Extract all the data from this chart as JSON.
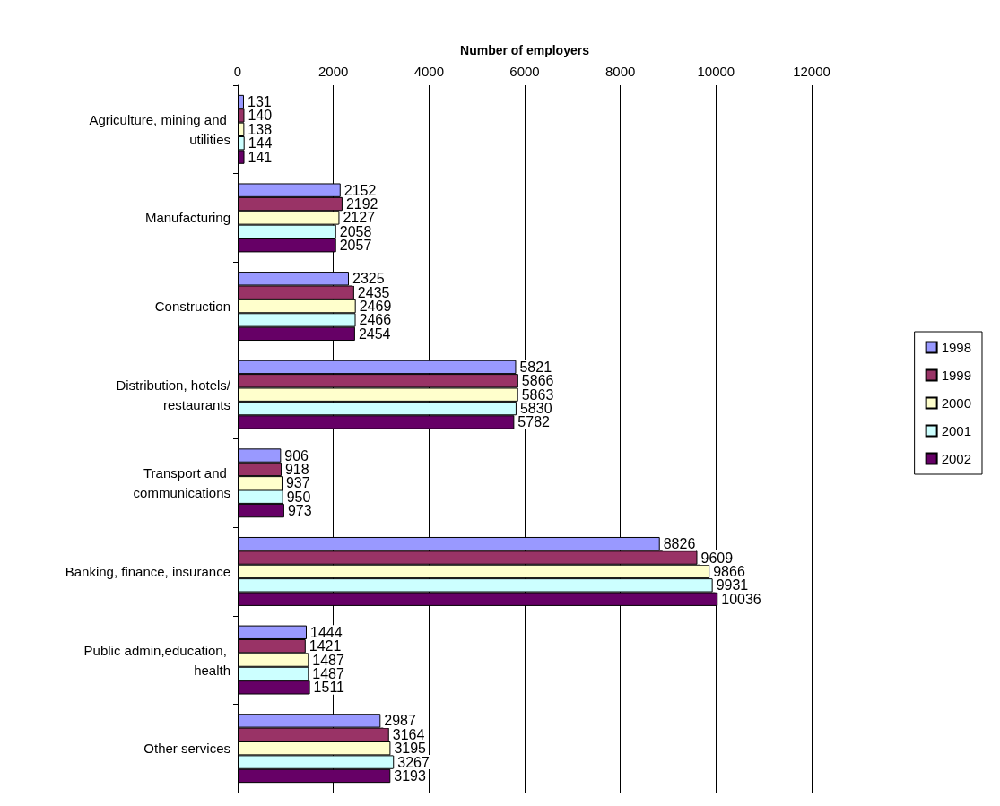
{
  "chart_data": {
    "type": "bar",
    "orientation": "horizontal",
    "xlabel": "Number of employers",
    "categories": [
      "Agriculture, mining and utilities",
      "Manufacturing",
      "Construction",
      "Distribution, hotels/restaurants",
      "Transport and communications",
      "Banking, finance, insurance",
      "Public admin,education, health",
      "Other services"
    ],
    "series": [
      {
        "name": "1998",
        "color": "#9999ff",
        "values": [
          131,
          2152,
          2325,
          5821,
          906,
          8826,
          1444,
          2987
        ]
      },
      {
        "name": "1999",
        "color": "#993366",
        "values": [
          140,
          2192,
          2435,
          5866,
          918,
          9609,
          1421,
          3164
        ]
      },
      {
        "name": "2000",
        "color": "#ffffcc",
        "values": [
          138,
          2127,
          2469,
          5863,
          937,
          9866,
          1487,
          3195
        ]
      },
      {
        "name": "2001",
        "color": "#ccffff",
        "values": [
          144,
          2058,
          2466,
          5830,
          950,
          9931,
          1487,
          3267
        ]
      },
      {
        "name": "2002",
        "color": "#660066",
        "values": [
          141,
          2057,
          2454,
          5782,
          973,
          10036,
          1511,
          3193
        ]
      }
    ],
    "xlim": [
      0,
      12000
    ],
    "xticks": [
      0,
      2000,
      4000,
      6000,
      8000,
      10000,
      12000
    ],
    "grid": "x",
    "legend": "right",
    "data_labels": true
  }
}
